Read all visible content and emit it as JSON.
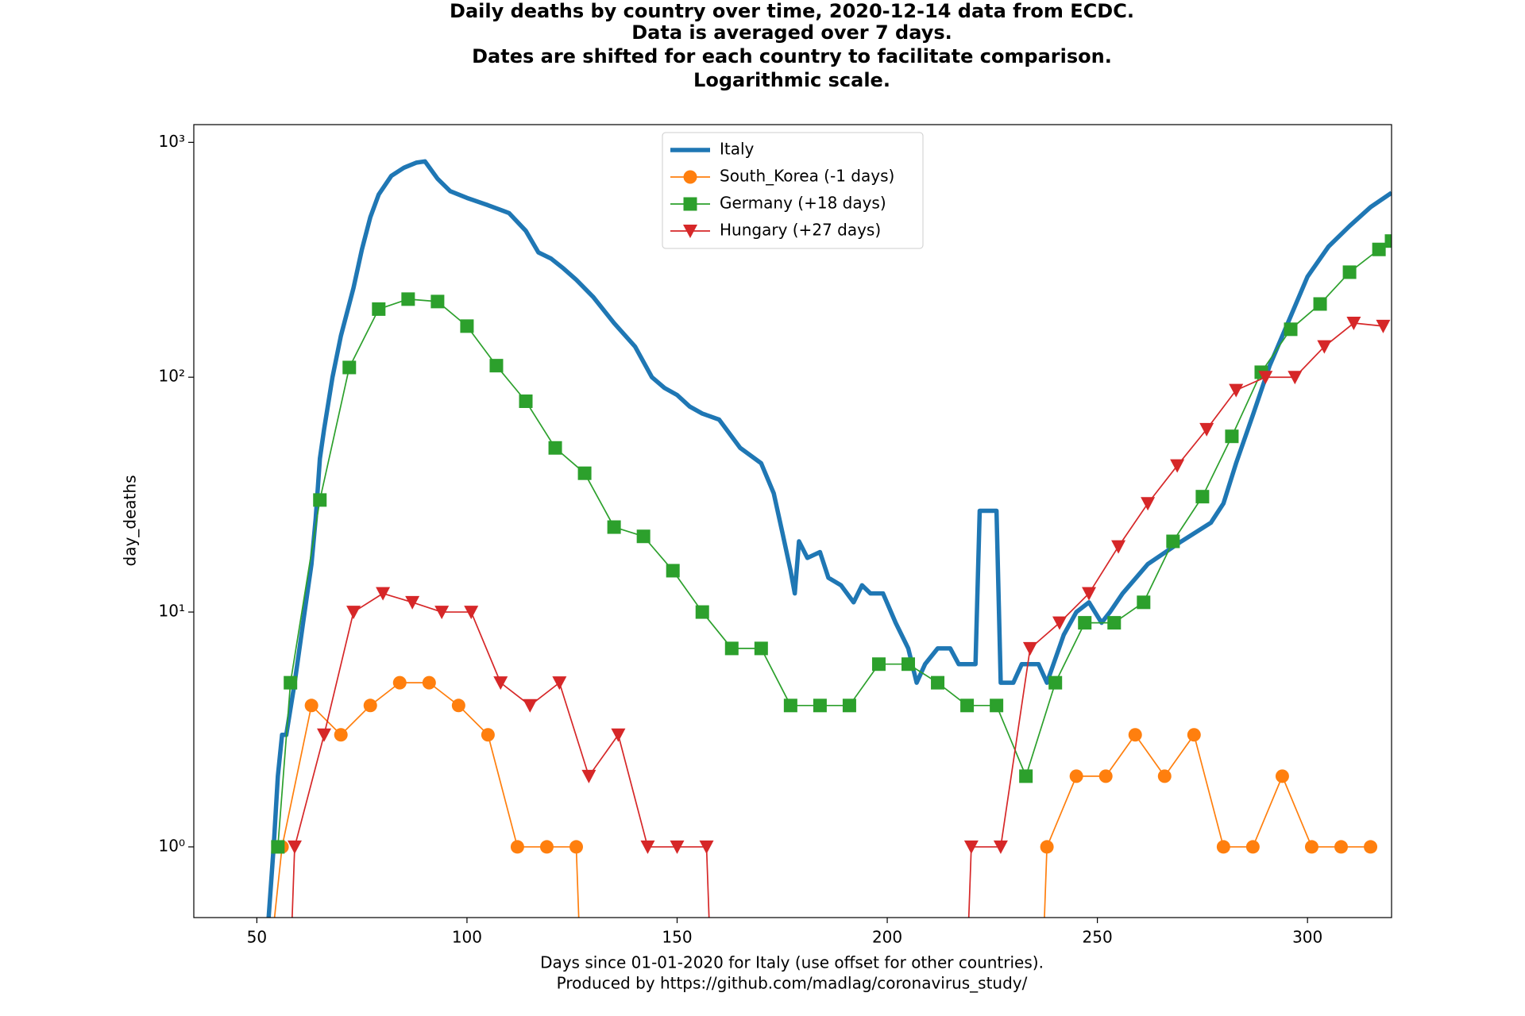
{
  "chart_data": {
    "type": "line",
    "title": [
      "Daily deaths by country over time, 2020-12-14 data from ECDC.",
      "Data is averaged over 7 days.",
      "Dates are shifted for each country to facilitate comparison.",
      "Logarithmic scale."
    ],
    "xlabel": [
      "Days since 01-01-2020 for Italy (use offset for other countries).",
      "Produced by https://github.com/madlag/coronavirus_study/"
    ],
    "ylabel": "day_deaths",
    "xlim": [
      35,
      320
    ],
    "xticks": [
      50,
      100,
      150,
      200,
      250,
      300
    ],
    "ylim": [
      0.5,
      1190
    ],
    "log_y": true,
    "yticks": [
      {
        "value": 1,
        "label": "10⁰"
      },
      {
        "value": 10,
        "label": "10¹"
      },
      {
        "value": 100,
        "label": "10²"
      },
      {
        "value": 1000,
        "label": "10³"
      }
    ],
    "legend": "upper center",
    "series": [
      {
        "name": "Italy",
        "color": "#1f77b4",
        "marker": "none",
        "x": [
          52,
          54,
          55,
          56,
          57,
          59,
          61,
          63,
          64,
          65,
          66,
          68,
          70,
          73,
          75,
          77,
          79,
          82,
          85,
          88,
          90,
          93,
          96,
          100,
          105,
          110,
          114,
          117,
          120,
          123,
          126,
          130,
          135,
          140,
          144,
          147,
          150,
          153,
          156,
          160,
          165,
          170,
          173,
          175,
          177,
          178,
          179,
          181,
          184,
          186,
          189,
          192,
          194,
          196,
          199,
          202,
          205,
          207,
          209,
          212,
          215,
          217,
          221,
          222,
          226,
          227,
          230,
          232,
          236,
          238,
          242,
          245,
          248,
          251,
          253,
          256,
          262,
          270,
          277,
          280,
          283,
          287,
          291,
          295,
          300,
          305,
          310,
          315,
          320
        ],
        "values": [
          0,
          1,
          2,
          3,
          3,
          5,
          9,
          16,
          25,
          45,
          60,
          100,
          150,
          240,
          350,
          480,
          600,
          720,
          780,
          820,
          830,
          700,
          620,
          580,
          540,
          500,
          420,
          340,
          320,
          290,
          260,
          220,
          170,
          135,
          100,
          90,
          84,
          75,
          70,
          66,
          50,
          43,
          32,
          22,
          15,
          12,
          20,
          17,
          18,
          14,
          13,
          11,
          13,
          12,
          12,
          9,
          7,
          5,
          6,
          7,
          7,
          6,
          6,
          27,
          27,
          5,
          5,
          6,
          6,
          5,
          8,
          10,
          11,
          9,
          10,
          12,
          16,
          20,
          24,
          29,
          43,
          69,
          112,
          165,
          268,
          360,
          440,
          530,
          610
        ]
      },
      {
        "name": "South_Korea (-1 days)",
        "color": "#ff7f0e",
        "marker": "circle",
        "x": [
          53,
          56,
          63,
          70,
          77,
          84,
          91,
          98,
          105,
          112,
          119,
          126,
          127,
          237,
          238,
          245,
          252,
          259,
          266,
          273,
          280,
          287,
          294,
          301,
          308,
          315
        ],
        "values": [
          0,
          1,
          4,
          3,
          4,
          5,
          5,
          4,
          3,
          1,
          1,
          1,
          0,
          0,
          1,
          2,
          2,
          3,
          2,
          3,
          1,
          1,
          2,
          1,
          1,
          1
        ]
      },
      {
        "name": "Germany (+18 days)",
        "color": "#2ca02c",
        "marker": "square",
        "x": [
          55,
          58,
          65,
          72,
          79,
          86,
          93,
          100,
          107,
          114,
          121,
          128,
          135,
          142,
          149,
          156,
          163,
          170,
          177,
          184,
          191,
          198,
          205,
          212,
          219,
          226,
          233,
          240,
          247,
          254,
          261,
          268,
          275,
          282,
          289,
          296,
          303,
          310,
          317,
          320
        ],
        "values": [
          1,
          5,
          30,
          110,
          195,
          215,
          210,
          165,
          112,
          79,
          50,
          39,
          23,
          21,
          15,
          10,
          7,
          7,
          4,
          4,
          4,
          6,
          6,
          5,
          4,
          4,
          2,
          5,
          9,
          9,
          11,
          20,
          31,
          56,
          105,
          160,
          205,
          280,
          350,
          380
        ]
      },
      {
        "name": "Hungary (+27 days)",
        "color": "#d62728",
        "marker": "triangle",
        "x": [
          58,
          59,
          66,
          73,
          80,
          87,
          94,
          101,
          108,
          115,
          122,
          129,
          136,
          143,
          150,
          157,
          158,
          219,
          220,
          227,
          234,
          241,
          248,
          255,
          262,
          269,
          276,
          283,
          290,
          297,
          304,
          311,
          318
        ],
        "values": [
          0,
          1,
          3,
          10,
          12,
          11,
          10,
          10,
          5,
          4,
          5,
          2,
          3,
          1,
          1,
          1,
          0,
          0,
          1,
          1,
          7,
          9,
          12,
          19,
          29,
          42,
          60,
          88,
          100,
          100,
          135,
          170,
          165
        ]
      }
    ]
  }
}
